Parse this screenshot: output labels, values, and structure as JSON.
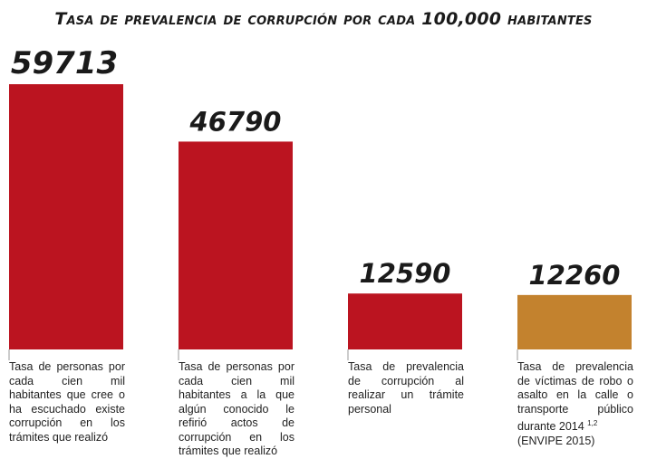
{
  "chart_data": {
    "type": "bar",
    "title": "Tasa de prevalencia de corrupción por cada 100,000 habitantes",
    "categories": [
      "Tasa de personas por cada cien mil habitantes que cree o ha escuchado existe corrupción en los trámites que realizó",
      "Tasa de personas por cada cien mil habitantes a la que algún conocido le refirió actos de corrupción en los trámites que realizó",
      "Tasa de prevalencia de corrupción al realizar un trámite personal",
      "Tasa de prevalencia de víctimas de robo o asalto en la calle o transporte público durante 2014"
    ],
    "values": [
      59713,
      46790,
      12590,
      12260
    ],
    "value_labels": [
      "59713",
      "46790",
      "12590",
      "12260"
    ],
    "bar_colors": [
      "#bb1420",
      "#bb1420",
      "#bb1420",
      "#c3822e"
    ],
    "ylim": [
      0,
      59713
    ],
    "xlabel": "",
    "ylabel": ""
  },
  "descriptions": [
    {
      "text": "Tasa de personas por cada cien mil habitantes que cree o ha escuchado existe corrupción en los trámites que realizó"
    },
    {
      "text": "Tasa de personas por cada cien mil habitantes a la que algún conocido le refirió actos de corrupción en los trámites que realizó"
    },
    {
      "text": "Tasa de prevalencia de corrupción al realizar un trámite personal"
    },
    {
      "text": "Tasa de prevalencia de víctimas de robo o asalto en la calle o transporte público durante 2014",
      "sup": "1,2",
      "source": "(ENVIPE 2015)"
    }
  ]
}
